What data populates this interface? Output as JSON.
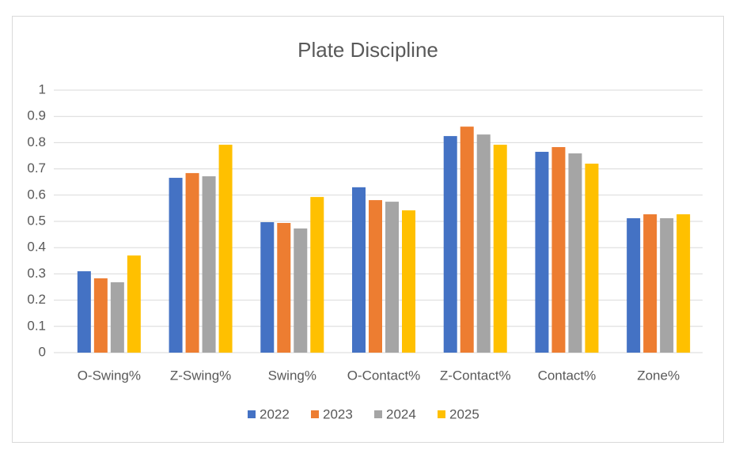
{
  "chart_data": {
    "type": "bar",
    "title": "Plate Discipline",
    "categories": [
      "O-Swing%",
      "Z-Swing%",
      "Swing%",
      "O-Contact%",
      "Z-Contact%",
      "Contact%",
      "Zone%"
    ],
    "series": [
      {
        "name": "2022",
        "color": "#4472c4",
        "values": [
          0.31,
          0.666,
          0.497,
          0.63,
          0.825,
          0.765,
          0.512
        ]
      },
      {
        "name": "2023",
        "color": "#ed7d31",
        "values": [
          0.283,
          0.684,
          0.494,
          0.581,
          0.861,
          0.783,
          0.527
        ]
      },
      {
        "name": "2024",
        "color": "#a5a5a5",
        "values": [
          0.268,
          0.672,
          0.473,
          0.575,
          0.831,
          0.759,
          0.512
        ]
      },
      {
        "name": "2025",
        "color": "#ffc000",
        "values": [
          0.37,
          0.792,
          0.593,
          0.542,
          0.792,
          0.72,
          0.527
        ]
      }
    ],
    "ylim": [
      0,
      1
    ],
    "yticks": [
      0,
      0.1,
      0.2,
      0.3,
      0.4,
      0.5,
      0.6,
      0.7,
      0.8,
      0.9,
      1
    ],
    "grid": true,
    "legend": "bottom"
  }
}
